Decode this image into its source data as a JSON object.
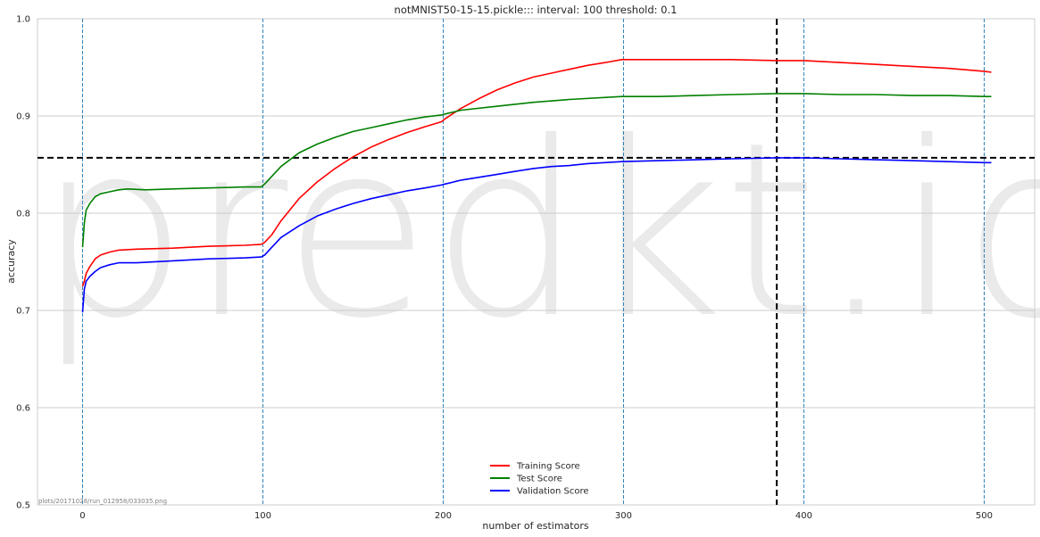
{
  "watermark": "predkt.io",
  "footer_path": "plots/20171028/run_012958/033035.png",
  "chart_data": {
    "type": "line",
    "title": "notMNIST50-15-15.pickle::: interval: 100 threshold: 0.1",
    "xlabel": "number of estimators",
    "ylabel": "accuracy",
    "xlim": [
      -25,
      528
    ],
    "ylim": [
      0.5,
      1.0
    ],
    "x_ticks": [
      0,
      100,
      200,
      300,
      400,
      500
    ],
    "x_tick_labels": [
      "0",
      "100",
      "200",
      "300",
      "400",
      "500"
    ],
    "y_ticks": [
      0.5,
      0.6,
      0.7,
      0.8,
      0.9,
      1.0
    ],
    "y_tick_labels": [
      "0.5",
      "0.6",
      "0.7",
      "0.8",
      "0.9",
      "1.0"
    ],
    "grid": "horizontal",
    "legend_position": "lower-center",
    "interval_lines_x": [
      0,
      100,
      200,
      300,
      400,
      500
    ],
    "best_x": 385,
    "best_y": 0.857,
    "series": [
      {
        "name": "Training Score",
        "color": "#ff0000",
        "x": [
          0,
          1,
          2,
          4,
          7,
          10,
          15,
          20,
          30,
          50,
          70,
          90,
          99,
          101,
          105,
          110,
          120,
          130,
          140,
          150,
          160,
          170,
          180,
          190,
          199,
          201,
          205,
          210,
          220,
          230,
          240,
          250,
          260,
          270,
          280,
          290,
          299,
          301,
          320,
          340,
          360,
          385,
          400,
          420,
          440,
          460,
          480,
          500,
          504
        ],
        "values": [
          0.725,
          0.73,
          0.738,
          0.745,
          0.753,
          0.757,
          0.76,
          0.762,
          0.763,
          0.764,
          0.766,
          0.767,
          0.768,
          0.77,
          0.778,
          0.792,
          0.815,
          0.832,
          0.846,
          0.858,
          0.868,
          0.876,
          0.883,
          0.889,
          0.894,
          0.897,
          0.902,
          0.908,
          0.918,
          0.927,
          0.934,
          0.94,
          0.944,
          0.948,
          0.952,
          0.955,
          0.958,
          0.958,
          0.958,
          0.958,
          0.958,
          0.957,
          0.957,
          0.955,
          0.953,
          0.951,
          0.949,
          0.946,
          0.945
        ]
      },
      {
        "name": "Test Score",
        "color": "#008000",
        "x": [
          0,
          1,
          2,
          4,
          7,
          10,
          15,
          20,
          25,
          35,
          50,
          70,
          90,
          99,
          101,
          105,
          110,
          120,
          130,
          140,
          150,
          160,
          170,
          180,
          190,
          199,
          201,
          210,
          230,
          250,
          270,
          299,
          320,
          340,
          360,
          385,
          400,
          420,
          440,
          460,
          480,
          500,
          504
        ],
        "values": [
          0.765,
          0.79,
          0.803,
          0.81,
          0.817,
          0.82,
          0.822,
          0.824,
          0.825,
          0.824,
          0.825,
          0.826,
          0.827,
          0.827,
          0.83,
          0.838,
          0.848,
          0.862,
          0.871,
          0.878,
          0.884,
          0.888,
          0.892,
          0.896,
          0.899,
          0.901,
          0.902,
          0.906,
          0.91,
          0.914,
          0.917,
          0.92,
          0.92,
          0.921,
          0.922,
          0.923,
          0.923,
          0.922,
          0.922,
          0.921,
          0.921,
          0.92,
          0.92
        ]
      },
      {
        "name": "Validation Score",
        "color": "#0000ff",
        "x": [
          0,
          1,
          2,
          4,
          7,
          10,
          15,
          20,
          30,
          50,
          70,
          90,
          99,
          101,
          105,
          110,
          120,
          130,
          140,
          150,
          160,
          170,
          180,
          190,
          199,
          201,
          210,
          220,
          230,
          240,
          250,
          260,
          270,
          280,
          299,
          320,
          340,
          360,
          385,
          400,
          420,
          440,
          460,
          480,
          500,
          504
        ],
        "values": [
          0.698,
          0.722,
          0.73,
          0.735,
          0.74,
          0.744,
          0.747,
          0.749,
          0.749,
          0.751,
          0.753,
          0.754,
          0.755,
          0.757,
          0.765,
          0.775,
          0.787,
          0.797,
          0.804,
          0.81,
          0.815,
          0.819,
          0.823,
          0.826,
          0.829,
          0.83,
          0.834,
          0.837,
          0.84,
          0.843,
          0.846,
          0.848,
          0.849,
          0.851,
          0.853,
          0.854,
          0.855,
          0.856,
          0.857,
          0.857,
          0.856,
          0.855,
          0.854,
          0.853,
          0.852,
          0.852
        ]
      }
    ]
  }
}
